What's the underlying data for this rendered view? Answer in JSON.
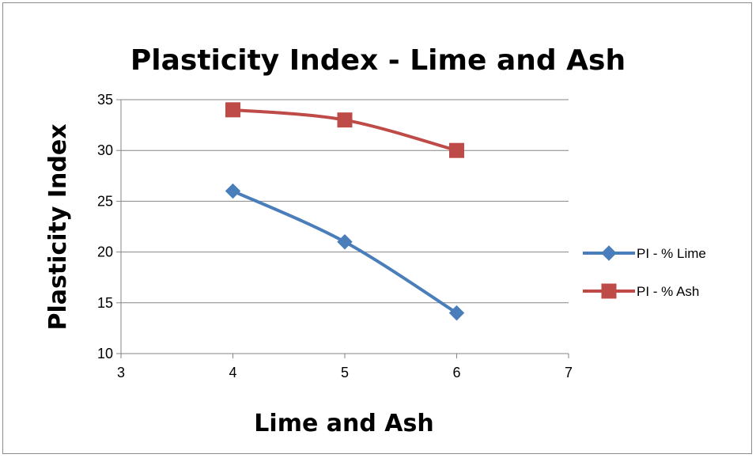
{
  "chart_data": {
    "type": "line",
    "title": "Plasticity Index - Lime and Ash",
    "xlabel": "Lime and Ash",
    "ylabel": "Plasticity Index",
    "xlim": [
      3,
      7
    ],
    "ylim": [
      10,
      35
    ],
    "xticks": [
      3,
      4,
      5,
      6,
      7
    ],
    "yticks": [
      10,
      15,
      20,
      25,
      30,
      35
    ],
    "grid": "horizontal",
    "legend_position": "right",
    "series": [
      {
        "name": "PI - % Lime",
        "color": "#4a7ebb",
        "marker": "diamond",
        "x": [
          4,
          5,
          6
        ],
        "y": [
          26,
          21,
          14
        ]
      },
      {
        "name": "PI - % Ash",
        "color": "#be4b48",
        "marker": "square",
        "x": [
          4,
          5,
          6
        ],
        "y": [
          34,
          33,
          30
        ]
      }
    ]
  }
}
